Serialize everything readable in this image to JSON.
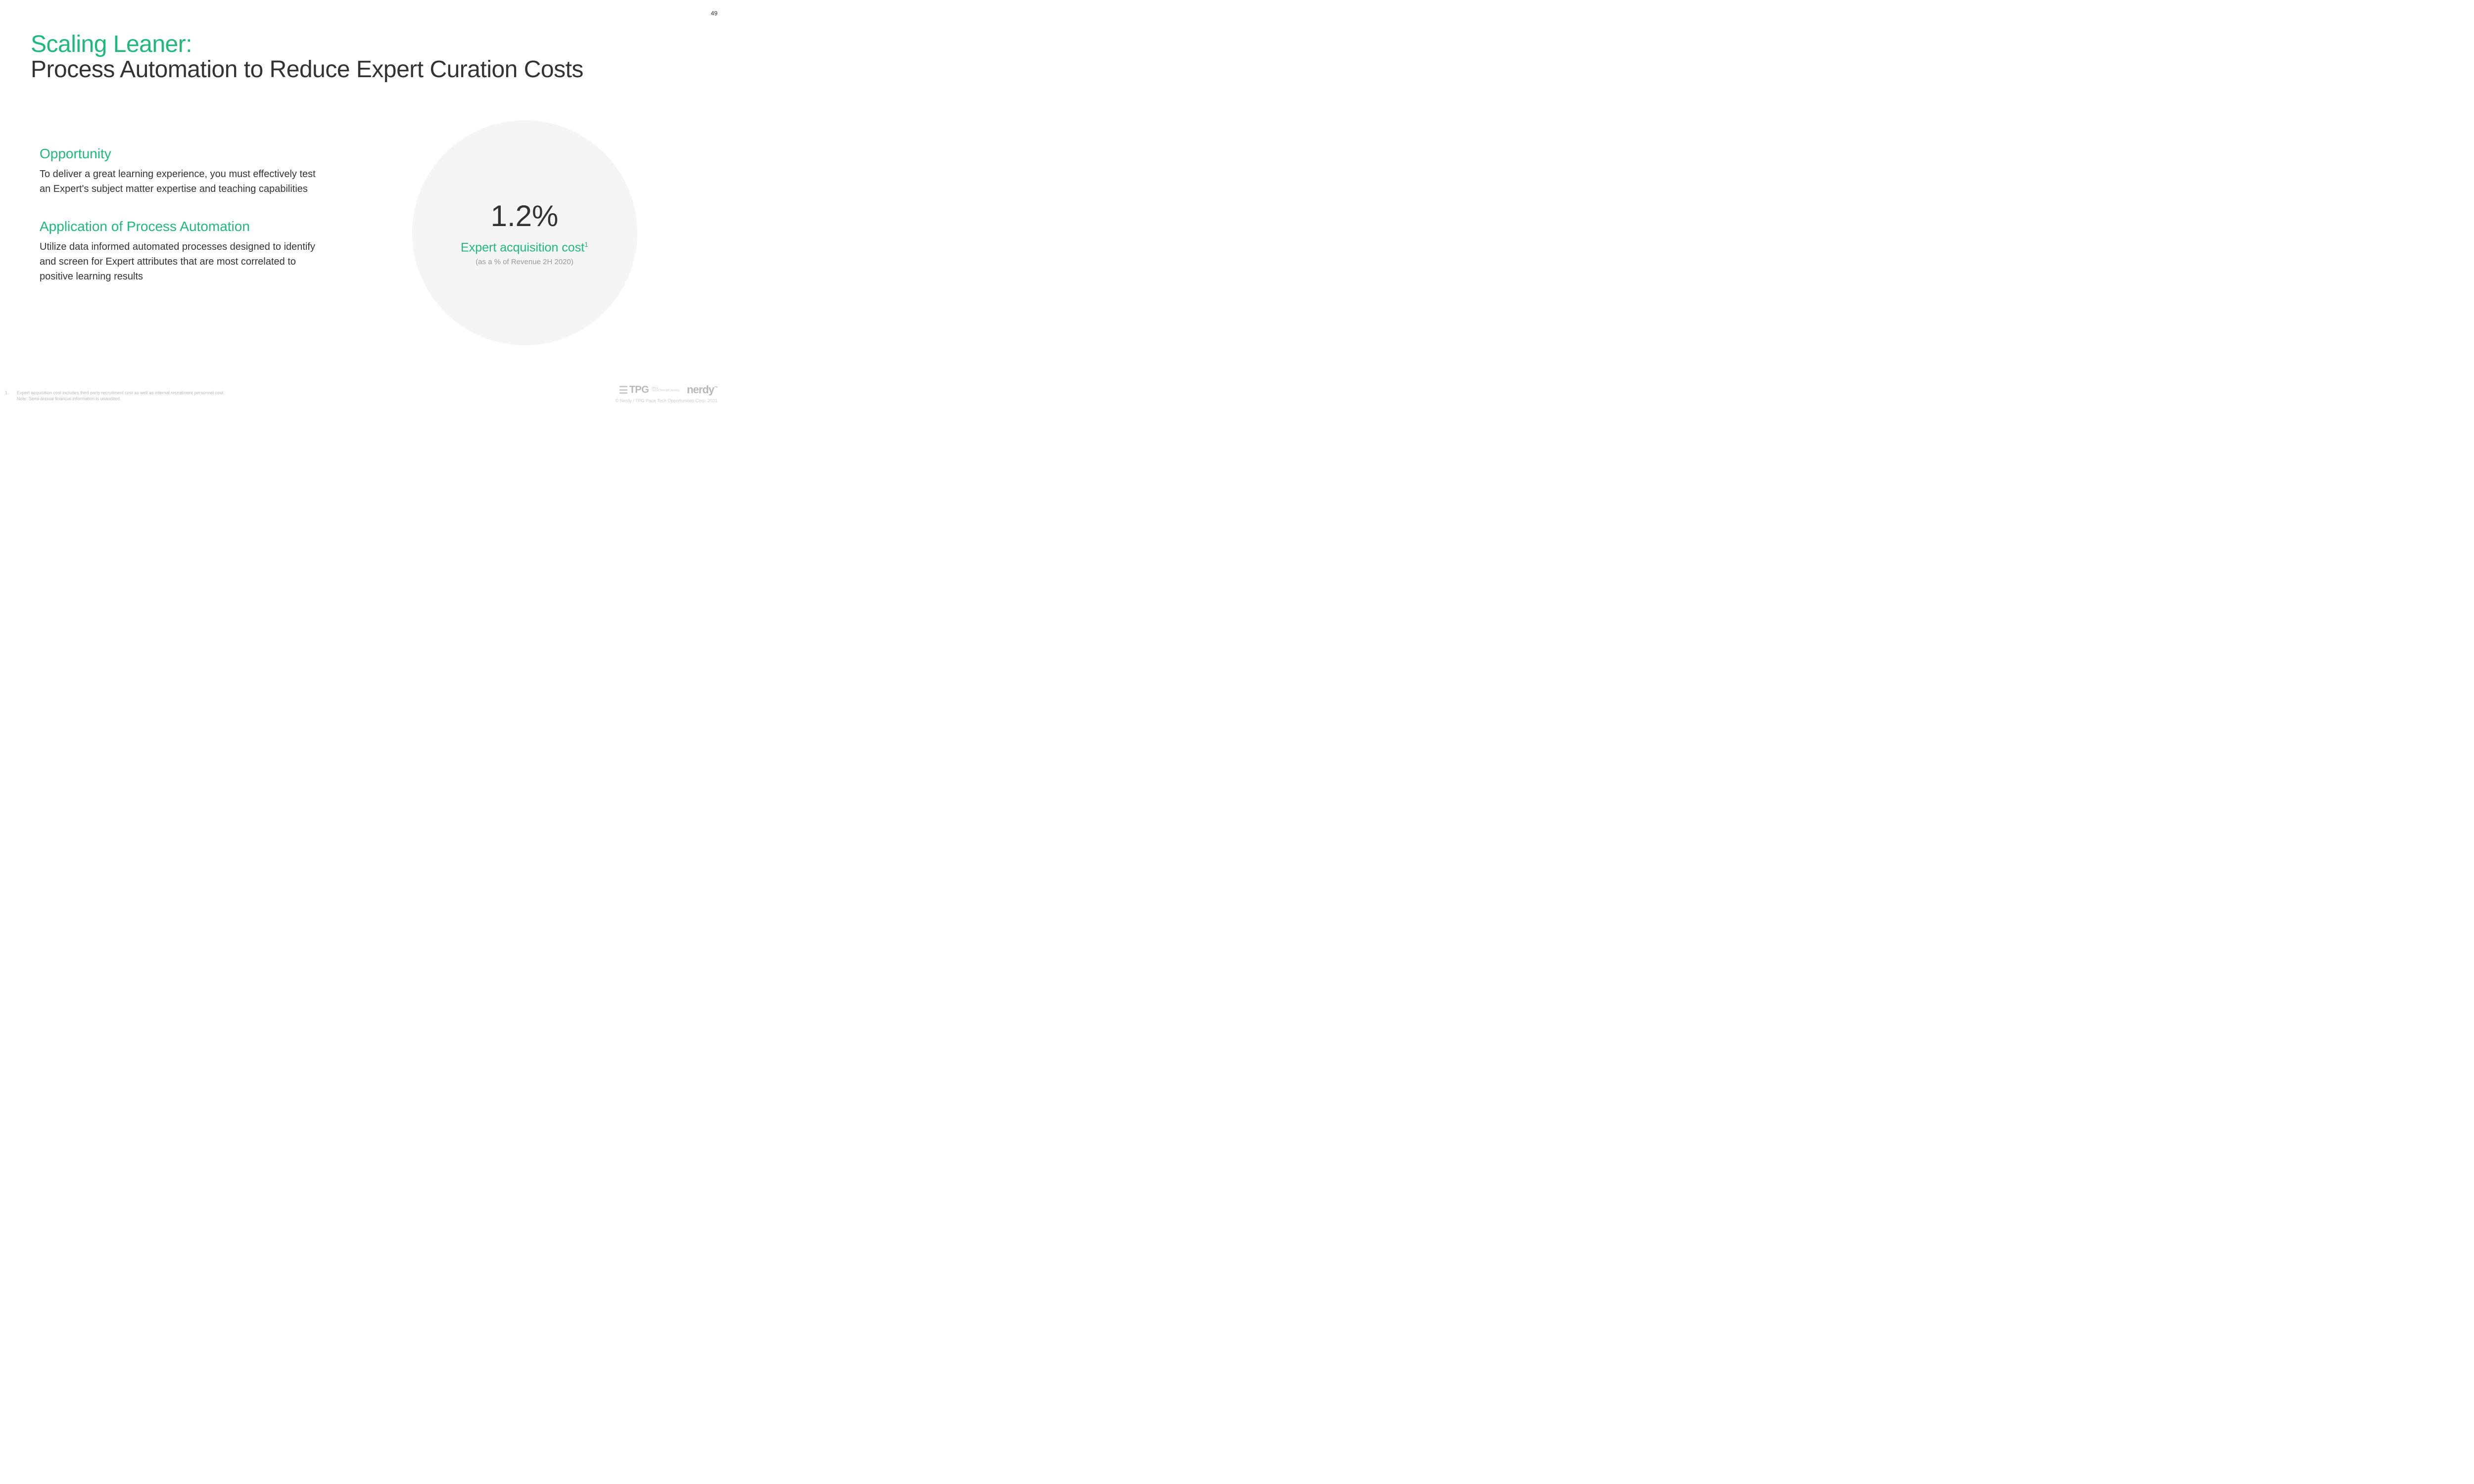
{
  "page_number": "49",
  "title": {
    "line1": "Scaling Leaner:",
    "line2": "Process Automation to Reduce Expert Curation Costs"
  },
  "sections": [
    {
      "title": "Opportunity",
      "body": "To deliver a great learning experience, you must effectively test an Expert's subject matter expertise and teaching capabilities"
    },
    {
      "title": "Application of Process Automation",
      "body": "Utilize data informed automated processes designed to identify and screen for Expert attributes that are most correlated to positive learning results"
    }
  ],
  "metric": {
    "value": "1.2%",
    "label": "Expert acquisition cost",
    "label_sup": "1",
    "sublabel": "(as a % of Revenue 2H 2020)",
    "circle_bg": "#f5f5f5"
  },
  "footnotes": {
    "items": [
      {
        "num": "1.",
        "text": "Expert acquisition cost includes third party recruitment cost as well as internal recruitment personnel cost."
      }
    ],
    "note": "Note: Semi-annual financial information is unaudited."
  },
  "logos": {
    "tpg_text": "TPG",
    "tpg_sub1": "PACE",
    "tpg_sub2": "TECH OPPORTUNITIES",
    "nerdy_text": "nerdy"
  },
  "copyright": "© Nerdy / TPG Pace Tech Opportunities Corp. 2021",
  "colors": {
    "accent_green": "#1fb97a",
    "text_dark": "#333333",
    "text_light": "#999999",
    "footnote": "#bbbbbb",
    "logo_gray": "#b8b8b8"
  }
}
